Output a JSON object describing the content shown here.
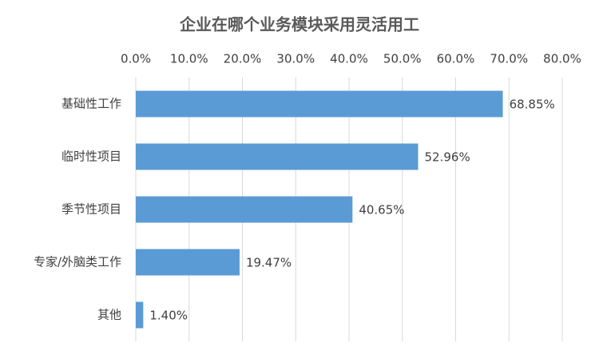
{
  "chart_data": {
    "type": "bar",
    "orientation": "horizontal",
    "title": "企业在哪个业务模块采用灵活用工",
    "categories": [
      "基础性工作",
      "临时性项目",
      "季节性项目",
      "专家/外脑类工作",
      "其他"
    ],
    "values": [
      68.85,
      52.96,
      40.65,
      19.47,
      1.4
    ],
    "value_labels": [
      "68.85%",
      "52.96%",
      "40.65%",
      "19.47%",
      "1.40%"
    ],
    "color": "#5b9bd5",
    "xlim": [
      0,
      80
    ],
    "xticks": [
      {
        "value": 0,
        "label": "0.0%"
      },
      {
        "value": 10,
        "label": "10.0%"
      },
      {
        "value": 20,
        "label": "20.0%"
      },
      {
        "value": 30,
        "label": "30.0%"
      },
      {
        "value": 40,
        "label": "40.0%"
      },
      {
        "value": 50,
        "label": "50.0%"
      },
      {
        "value": 60,
        "label": "60.0%"
      },
      {
        "value": 70,
        "label": "70.0%"
      },
      {
        "value": 80,
        "label": "80.0%"
      }
    ],
    "grid": true
  }
}
